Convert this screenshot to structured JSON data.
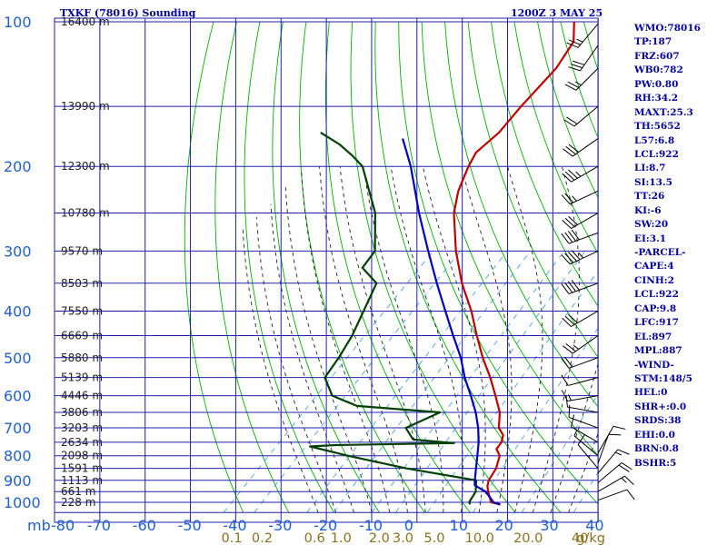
{
  "header": {
    "station": "TXKF (78016) Sounding",
    "datetime": "1200Z  3 MAY 25"
  },
  "indices": [
    "WMO:78016",
    "TP:187",
    "FRZ:607",
    "WB0:782",
    "PW:0.80",
    "RH:34.2",
    "MAXT:25.3",
    "TH:5652",
    "L57:6.8",
    "LCL:922",
    "LI:8.7",
    "SI:13.5",
    "TT:26",
    "KI:-6",
    "SW:20",
    "EI:3.1",
    "-PARCEL-",
    "CAPE:4",
    "CINH:2",
    "LCL:922",
    "CAP:9.8",
    "LFC:917",
    "EL:897",
    "MPL:887",
    "-WIND-",
    "STM:148/5",
    "HEL:0",
    "SHR+:0.0",
    "SRDS:38",
    "EHI:0.0",
    "BRN:0.8",
    "BSHR:5"
  ],
  "colors": {
    "grid": "#2020b0",
    "dry_adiabat": "#00b000",
    "moist_adiabat": "#202020",
    "mixing_ratio": "#4fa0e0",
    "temperature": "#c00000",
    "dewpoint": "#004000",
    "parcel": "#0000c0",
    "pressure_label": "#2060d0",
    "mixing_label": "#8a7020",
    "height_label": "#202020",
    "wind": "#000000"
  },
  "chart_data": {
    "type": "line",
    "chart_kind": "skew-t log-p sounding",
    "pressure_axis": {
      "label": "mb",
      "ticks": [
        100,
        200,
        300,
        400,
        500,
        600,
        700,
        800,
        900,
        1000
      ],
      "scale": "log",
      "range": [
        100,
        1050
      ]
    },
    "temperature_axis": {
      "ticks": [
        -80,
        -70,
        -60,
        -50,
        -40,
        -30,
        -20,
        -10,
        0,
        10,
        20,
        30,
        40
      ],
      "labels": [
        "-80",
        "-70",
        "-60",
        "-50",
        "-40",
        "-30",
        "-20",
        "-10",
        "0",
        "10",
        "20",
        "30",
        "40"
      ],
      "range": [
        -80,
        40
      ]
    },
    "mixing_ratio_axis": {
      "unit": "g/kg",
      "values": [
        0.1,
        0.2,
        0.6,
        1.0,
        2.0,
        3.0,
        5.0,
        10.0,
        20.0,
        40.0
      ],
      "labels": [
        "0.1",
        "0.2",
        "0.6",
        "1.0",
        "2.0",
        "3.0",
        "5.0",
        "10.0",
        "20.0",
        "40"
      ]
    },
    "height_labels": [
      {
        "p": 100,
        "text": "16400 m"
      },
      {
        "p": 150,
        "text": "13990 m"
      },
      {
        "p": 200,
        "text": "12300 m"
      },
      {
        "p": 250,
        "text": "10780 m"
      },
      {
        "p": 300,
        "text": "9570 m"
      },
      {
        "p": 350,
        "text": "8503 m"
      },
      {
        "p": 400,
        "text": "7550 m"
      },
      {
        "p": 450,
        "text": "6669 m"
      },
      {
        "p": 500,
        "text": "5880 m"
      },
      {
        "p": 550,
        "text": "5139 m"
      },
      {
        "p": 600,
        "text": "4446 m"
      },
      {
        "p": 650,
        "text": "3806 m"
      },
      {
        "p": 700,
        "text": "3203 m"
      },
      {
        "p": 750,
        "text": "2634 m"
      },
      {
        "p": 800,
        "text": "2098 m"
      },
      {
        "p": 850,
        "text": "1591 m"
      },
      {
        "p": 900,
        "text": "1113 m"
      },
      {
        "p": 950,
        "text": "661 m"
      },
      {
        "p": 1000,
        "text": "228 m"
      }
    ],
    "series": [
      {
        "name": "temperature",
        "points": [
          [
            1010,
            19
          ],
          [
            1000,
            16.4
          ],
          [
            950,
            13.4
          ],
          [
            925,
            12
          ],
          [
            900,
            11
          ],
          [
            850,
            10
          ],
          [
            800,
            8
          ],
          [
            775,
            5.8
          ],
          [
            750,
            5.4
          ],
          [
            725,
            4.2
          ],
          [
            700,
            1.6
          ],
          [
            650,
            -1.6
          ],
          [
            600,
            -6.3
          ],
          [
            550,
            -11.5
          ],
          [
            500,
            -17.6
          ],
          [
            450,
            -23.8
          ],
          [
            400,
            -30.5
          ],
          [
            350,
            -38.8
          ],
          [
            300,
            -47.3
          ],
          [
            250,
            -56.2
          ],
          [
            225,
            -60.1
          ],
          [
            200,
            -63.3
          ],
          [
            187,
            -64.7
          ],
          [
            170,
            -64.0
          ],
          [
            150,
            -64.9
          ],
          [
            125,
            -65.5
          ],
          [
            110,
            -67.5
          ],
          [
            100,
            -71.8
          ]
        ]
      },
      {
        "name": "dewpoint",
        "points": [
          [
            1010,
            12.2
          ],
          [
            1000,
            11.5
          ],
          [
            950,
            10.6
          ],
          [
            900,
            8.2
          ],
          [
            850,
            -10
          ],
          [
            800,
            -26
          ],
          [
            765,
            -36.5
          ],
          [
            760,
            -31
          ],
          [
            753,
            -5
          ],
          [
            740,
            -15
          ],
          [
            700,
            -19.2
          ],
          [
            650,
            -15
          ],
          [
            630,
            -35
          ],
          [
            600,
            -42.8
          ],
          [
            550,
            -48.5
          ],
          [
            500,
            -49.8
          ],
          [
            450,
            -51.7
          ],
          [
            400,
            -54.6
          ],
          [
            350,
            -57.9
          ],
          [
            325,
            -64.5
          ],
          [
            300,
            -65.4
          ],
          [
            250,
            -73.8
          ],
          [
            200,
            -87
          ],
          [
            190,
            -91.6
          ],
          [
            180,
            -97
          ],
          [
            170,
            -103.9
          ]
        ]
      },
      {
        "name": "parcel",
        "points": [
          [
            1010,
            18.8
          ],
          [
            1000,
            17
          ],
          [
            950,
            12.8
          ],
          [
            922,
            9
          ],
          [
            900,
            7.9
          ],
          [
            850,
            5.5
          ],
          [
            800,
            3
          ],
          [
            750,
            0.3
          ],
          [
            700,
            -3
          ],
          [
            650,
            -7
          ],
          [
            600,
            -11.8
          ],
          [
            550,
            -17.2
          ],
          [
            500,
            -22.5
          ],
          [
            450,
            -29.1
          ],
          [
            400,
            -36.3
          ],
          [
            350,
            -44.4
          ],
          [
            300,
            -53.5
          ],
          [
            250,
            -64
          ],
          [
            200,
            -76.2
          ],
          [
            175,
            -84.2
          ]
        ]
      }
    ],
    "winds_right": [
      {
        "p": 101,
        "dir": 220,
        "spd": 25
      },
      {
        "p": 112,
        "dir": 215,
        "spd": 30
      },
      {
        "p": 125,
        "dir": 225,
        "spd": 25
      },
      {
        "p": 150,
        "dir": 230,
        "spd": 20
      },
      {
        "p": 175,
        "dir": 235,
        "spd": 30
      },
      {
        "p": 200,
        "dir": 240,
        "spd": 35
      },
      {
        "p": 225,
        "dir": 245,
        "spd": 25
      },
      {
        "p": 250,
        "dir": 240,
        "spd": 30
      },
      {
        "p": 275,
        "dir": 250,
        "spd": 40
      },
      {
        "p": 300,
        "dir": 245,
        "spd": 45
      },
      {
        "p": 350,
        "dir": 250,
        "spd": 40
      },
      {
        "p": 400,
        "dir": 240,
        "spd": 30
      },
      {
        "p": 450,
        "dir": 235,
        "spd": 25
      },
      {
        "p": 500,
        "dir": 250,
        "spd": 20
      },
      {
        "p": 550,
        "dir": 255,
        "spd": 10
      },
      {
        "p": 600,
        "dir": 260,
        "spd": 15
      },
      {
        "p": 650,
        "dir": 280,
        "spd": 10
      },
      {
        "p": 700,
        "dir": 290,
        "spd": 10
      },
      {
        "p": 750,
        "dir": 300,
        "spd": 10
      },
      {
        "p": 800,
        "dir": 310,
        "spd": 5
      },
      {
        "p": 850,
        "dir": 320,
        "spd": 10
      }
    ],
    "winds_left": [
      {
        "p": 790,
        "dir": 30,
        "spd": 10
      },
      {
        "p": 830,
        "dir": 20,
        "spd": 10
      },
      {
        "p": 870,
        "dir": 40,
        "spd": 15
      },
      {
        "p": 910,
        "dir": 50,
        "spd": 20
      },
      {
        "p": 950,
        "dir": 60,
        "spd": 15
      },
      {
        "p": 990,
        "dir": 70,
        "spd": 10
      }
    ]
  }
}
